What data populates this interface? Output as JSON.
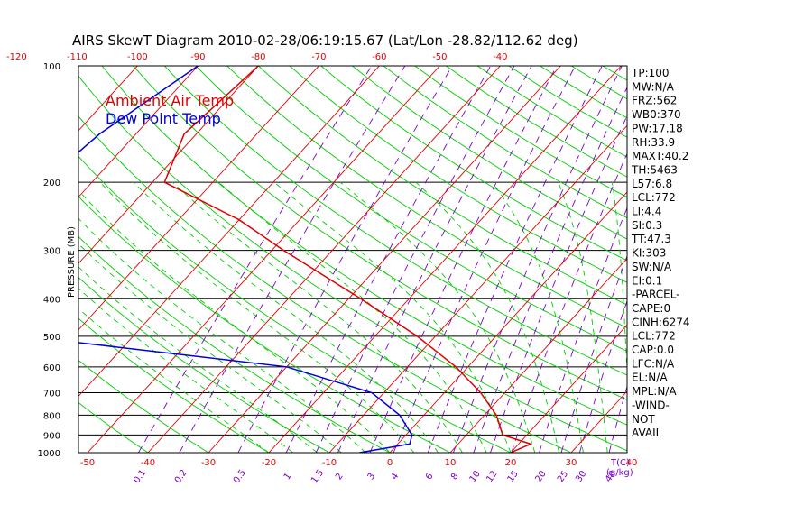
{
  "chart_data": {
    "type": "line",
    "title": "AIRS SkewT Diagram 2010-02-28/06:19:15.67 (Lat/Lon -28.82/112.62 deg)",
    "ylabel": "PRESSURE (MB)",
    "xlabel_bottom": "T(C)",
    "mixing_ratio_unit": "(g/kg)",
    "pressure_ticks": [
      "100",
      "200",
      "300",
      "400",
      "500",
      "600",
      "700",
      "800",
      "900",
      "1000"
    ],
    "top_temp_ticks": [
      "-120",
      "-110",
      "-100",
      "-90",
      "-80",
      "-70",
      "-60",
      "-50",
      "-40"
    ],
    "bottom_temp_ticks": [
      "-50",
      "-40",
      "-30",
      "-20",
      "-10",
      "0",
      "10",
      "20",
      "30",
      "40"
    ],
    "mixing_ratio_ticks": [
      "0.1",
      "0.2",
      "0.5",
      "1",
      "1.5",
      "2",
      "3",
      "4",
      "6",
      "8",
      "10",
      "12",
      "15",
      "20",
      "25",
      "30",
      "40"
    ],
    "legend": [
      {
        "name": "Ambient Air Temp",
        "color": "#e00000"
      },
      {
        "name": "Dew Point Temp",
        "color": "#0000dd"
      }
    ],
    "series": [
      {
        "name": "Ambient Air Temp",
        "color": "#e00000",
        "points": [
          [
            100,
            -80
          ],
          [
            150,
            -82
          ],
          [
            200,
            -78
          ],
          [
            250,
            -60
          ],
          [
            300,
            -48
          ],
          [
            400,
            -28
          ],
          [
            500,
            -13
          ],
          [
            600,
            -2
          ],
          [
            700,
            6
          ],
          [
            800,
            12
          ],
          [
            900,
            16
          ],
          [
            950,
            22
          ],
          [
            1000,
            20
          ]
        ]
      },
      {
        "name": "Dew Point Temp",
        "color": "#0000dd",
        "points": [
          [
            100,
            -90
          ],
          [
            150,
            -96
          ],
          [
            200,
            -98
          ],
          [
            250,
            -88
          ],
          [
            300,
            -95
          ],
          [
            400,
            -99
          ],
          [
            500,
            -78
          ],
          [
            600,
            -30
          ],
          [
            700,
            -12
          ],
          [
            800,
            -4
          ],
          [
            900,
            1
          ],
          [
            950,
            2
          ],
          [
            1000,
            -5
          ]
        ]
      }
    ],
    "indices": [
      "TP:100",
      "MW:N/A",
      "FRZ:562",
      "WB0:370",
      "PW:17.18",
      "RH:33.9",
      "MAXT:40.2",
      "TH:5463",
      "L57:6.8",
      "LCL:772",
      "LI:4.4",
      "SI:0.3",
      "TT:47.3",
      "KI:303",
      "SW:N/A",
      "EI:0.1",
      "-PARCEL-",
      "CAPE:0",
      "CINH:6274",
      "LCL:772",
      "CAP:0.0",
      "LFC:N/A",
      "EL:N/A",
      "MPL:N/A",
      "-WIND-",
      "NOT",
      "AVAIL"
    ],
    "colors": {
      "isotherm": "#e00000",
      "dry_adiabat": "#00cc00",
      "moist_adiabat": "#00cc00",
      "mixing_ratio": "#7a00c8",
      "isobar": "#000000"
    }
  }
}
